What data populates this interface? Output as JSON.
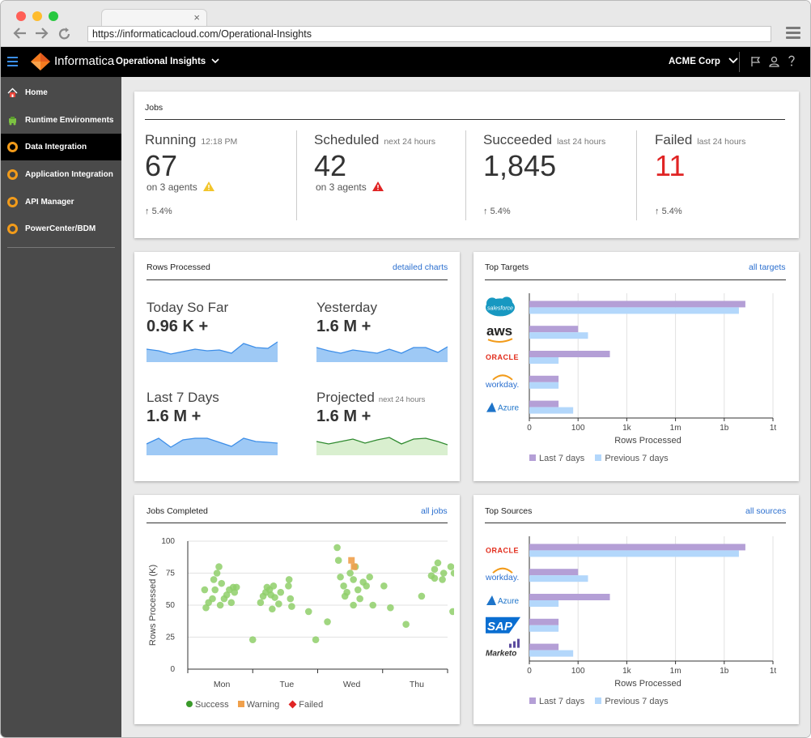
{
  "browser": {
    "url": "https://informaticacloud.com/Operational-Insights",
    "tab_close": "×"
  },
  "header": {
    "brand": "Informatica",
    "app": "Operational Insights",
    "org": "ACME Corp"
  },
  "sidebar": {
    "items": [
      {
        "label": "Home",
        "icon": "home-icon"
      },
      {
        "label": "Runtime Environments",
        "icon": "agent-icon"
      },
      {
        "label": "Data Integration",
        "icon": "ring-icon"
      },
      {
        "label": "Application Integration",
        "icon": "ring-icon"
      },
      {
        "label": "API Manager",
        "icon": "ring-icon"
      },
      {
        "label": "PowerCenter/BDM",
        "icon": "ring-icon"
      }
    ],
    "active_index": 2
  },
  "jobs": {
    "title": "Jobs",
    "running": {
      "label": "Running",
      "sub": "12:18 PM",
      "value": "67",
      "agents": "on 3 agents",
      "trend": "5.4%"
    },
    "scheduled": {
      "label": "Scheduled",
      "sub": "next 24 hours",
      "value": "42",
      "agents": "on 3 agents"
    },
    "succeeded": {
      "label": "Succeeded",
      "sub": "last 24 hours",
      "value": "1,845",
      "trend": "5.4%"
    },
    "failed": {
      "label": "Failed",
      "sub": "last 24 hours",
      "value": "11",
      "trend": "5.4%"
    }
  },
  "rows_processed": {
    "title": "Rows Processed",
    "link": "detailed charts",
    "today": {
      "label": "Today So Far",
      "value": "0.96 K +"
    },
    "yesterday": {
      "label": "Yesterday",
      "value": "1.6 M +"
    },
    "last7": {
      "label": "Last 7 Days",
      "value": "1.6 M +"
    },
    "projected": {
      "label": "Projected",
      "sub": "next 24 hours",
      "value": "1.6 M +"
    }
  },
  "top_targets": {
    "title": "Top Targets",
    "link": "all targets",
    "logos": [
      "salesforce",
      "aws",
      "ORACLE",
      "workday.",
      "Azure"
    ],
    "ticks": [
      "0",
      "100",
      "1k",
      "1m",
      "1b",
      "1t"
    ],
    "xlabel": "Rows Processed",
    "legend": [
      "Last 7 days",
      "Previous 7 days"
    ]
  },
  "top_sources": {
    "title": "Top Sources",
    "link": "all sources",
    "logos": [
      "ORACLE",
      "workday.",
      "Azure",
      "SAP",
      "Marketo"
    ],
    "ticks": [
      "0",
      "100",
      "1k",
      "1m",
      "1b",
      "1t"
    ],
    "xlabel": "Rows Processed",
    "legend": [
      "Last 7 days",
      "Previous 7 days"
    ]
  },
  "jobs_completed": {
    "title": "Jobs Completed",
    "link": "all jobs",
    "legend": [
      "Success",
      "Warning",
      "Failed"
    ]
  },
  "colors": {
    "accent": "#2b6fcf",
    "failed": "#e02424",
    "last7": "#b49fd6",
    "prev7": "#b3d7fb",
    "success": "#8fcf6a",
    "warning": "#f0a04b",
    "spark_fill": "#9ec9f5",
    "spark_line": "#3d8ee8",
    "projected_fill": "#d9efcf",
    "projected_line": "#2f8a2f"
  },
  "chart_data": [
    {
      "type": "bar",
      "title": "Top Targets",
      "categories": [
        "salesforce",
        "aws",
        "ORACLE",
        "workday.",
        "Azure"
      ],
      "x_ticks": [
        "0",
        "100",
        "1k",
        "1m",
        "1b",
        "1t"
      ],
      "xlabel": "Rows Processed",
      "scale": "log",
      "series": [
        {
          "name": "Last 7 days",
          "values": [
            20000000000,
            100,
            450,
            60,
            60
          ]
        },
        {
          "name": "Previous 7 days",
          "values": [
            8000000000,
            160,
            60,
            60,
            90
          ]
        }
      ],
      "orientation": "horizontal",
      "legend": "bottom"
    },
    {
      "type": "bar",
      "title": "Top Sources",
      "categories": [
        "ORACLE",
        "workday.",
        "Azure",
        "SAP",
        "Marketo"
      ],
      "x_ticks": [
        "0",
        "100",
        "1k",
        "1m",
        "1b",
        "1t"
      ],
      "xlabel": "Rows Processed",
      "scale": "log",
      "series": [
        {
          "name": "Last 7 days",
          "values": [
            20000000000,
            100,
            450,
            60,
            60
          ]
        },
        {
          "name": "Previous 7 days",
          "values": [
            8000000000,
            160,
            60,
            60,
            90
          ]
        }
      ],
      "orientation": "horizontal",
      "legend": "bottom"
    },
    {
      "type": "scatter",
      "title": "Jobs Completed",
      "ylabel": "Rows Processed (K)",
      "categories": [
        "Mon",
        "Tue",
        "Wed",
        "Thu"
      ],
      "y_ticks": [
        0,
        25,
        50,
        75,
        100
      ],
      "ylim": [
        0,
        100
      ],
      "points_x_unit": "days from Mon",
      "series": [
        {
          "name": "Success",
          "points": [
            [
              -0.24,
              62
            ],
            [
              -0.22,
              48
            ],
            [
              -0.18,
              52
            ],
            [
              -0.12,
              55
            ],
            [
              -0.1,
              70
            ],
            [
              -0.05,
              75
            ],
            [
              -0.02,
              80
            ],
            [
              0.02,
              67
            ],
            [
              -0.08,
              62
            ],
            [
              0.0,
              50
            ],
            [
              0.06,
              55
            ],
            [
              0.1,
              58
            ],
            [
              0.14,
              62
            ],
            [
              0.17,
              52
            ],
            [
              0.2,
              64
            ],
            [
              0.22,
              60
            ],
            [
              0.25,
              64
            ],
            [
              0.5,
              23
            ],
            [
              0.62,
              52
            ],
            [
              0.66,
              57
            ],
            [
              0.7,
              60
            ],
            [
              0.72,
              64
            ],
            [
              0.76,
              62
            ],
            [
              0.78,
              58
            ],
            [
              0.8,
              47
            ],
            [
              0.82,
              65
            ],
            [
              0.84,
              56
            ],
            [
              0.9,
              51
            ],
            [
              0.93,
              60
            ],
            [
              1.06,
              70
            ],
            [
              1.05,
              65
            ],
            [
              1.08,
              55
            ],
            [
              1.1,
              49
            ],
            [
              1.36,
              45
            ],
            [
              1.47,
              23
            ],
            [
              1.65,
              37
            ],
            [
              1.8,
              95
            ],
            [
              1.82,
              85
            ],
            [
              1.85,
              72
            ],
            [
              1.9,
              65
            ],
            [
              1.95,
              60
            ],
            [
              2.0,
              75
            ],
            [
              2.05,
              70
            ],
            [
              2.08,
              80
            ],
            [
              2.12,
              62
            ],
            [
              2.15,
              55
            ],
            [
              2.2,
              68
            ],
            [
              2.25,
              65
            ],
            [
              2.3,
              72
            ],
            [
              2.35,
              50
            ],
            [
              2.05,
              50
            ],
            [
              1.92,
              57
            ],
            [
              2.52,
              65
            ],
            [
              2.62,
              48
            ],
            [
              2.86,
              35
            ],
            [
              3.1,
              57
            ],
            [
              3.25,
              73
            ],
            [
              3.3,
              78
            ],
            [
              3.35,
              83
            ],
            [
              3.42,
              70
            ],
            [
              3.44,
              75
            ],
            [
              3.55,
              80
            ],
            [
              3.6,
              75
            ],
            [
              3.58,
              45
            ],
            [
              3.3,
              71
            ]
          ]
        },
        {
          "name": "Warning",
          "points": [
            [
              2.02,
              85
            ],
            [
              2.06,
              80
            ]
          ]
        },
        {
          "name": "Failed",
          "points": []
        }
      ],
      "legend": "bottom"
    }
  ]
}
